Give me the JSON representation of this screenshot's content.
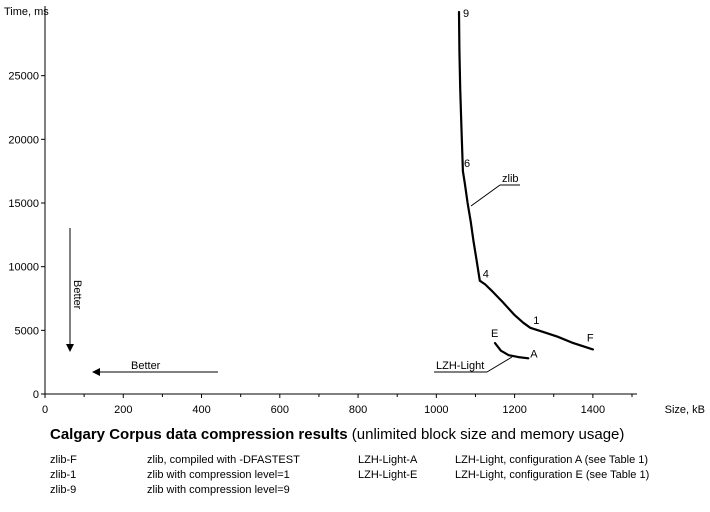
{
  "chart_data": {
    "type": "line",
    "xlabel": "Size, kB",
    "ylabel": "Time, ms",
    "xlim": [
      0,
      1500
    ],
    "ylim": [
      0,
      30000
    ],
    "x_ticks": [
      "0",
      "200",
      "400",
      "600",
      "800",
      "1000",
      "1200",
      "1400"
    ],
    "y_ticks": [
      "0",
      "5000",
      "10000",
      "15000",
      "20000",
      "25000"
    ],
    "grid": false,
    "series": [
      {
        "name": "zlib",
        "x": [
          1058,
          1059,
          1061,
          1064,
          1068,
          1073,
          1080,
          1088,
          1095,
          1103,
          1111,
          1125,
          1145,
          1170,
          1200,
          1222,
          1240,
          1270,
          1310,
          1350,
          1400
        ],
        "y": [
          30000,
          27000,
          24000,
          21000,
          17500,
          16500,
          15000,
          13500,
          12000,
          10500,
          8900,
          8600,
          8000,
          7200,
          6200,
          5600,
          5200,
          4900,
          4500,
          4000,
          3500
        ]
      },
      {
        "name": "LZH-Light",
        "x": [
          1150,
          1165,
          1185,
          1210,
          1235
        ],
        "y": [
          4000,
          3400,
          3050,
          2900,
          2800
        ]
      }
    ],
    "point_labels": [
      {
        "text": "9",
        "x": 1058,
        "y": 30000
      },
      {
        "text": "6",
        "x": 1068,
        "y": 17500
      },
      {
        "text": "4",
        "x": 1111,
        "y": 8900
      },
      {
        "text": "1",
        "x": 1240,
        "y": 5200
      },
      {
        "text": "F",
        "x": 1400,
        "y": 3500
      },
      {
        "text": "E",
        "x": 1150,
        "y": 4000
      },
      {
        "text": "A",
        "x": 1235,
        "y": 2800
      }
    ],
    "better_labels": {
      "vertical": "Better",
      "horizontal": "Better"
    }
  },
  "caption": {
    "bold": "Calgary Corpus data compression results",
    "rest": " (unlimited block size and memory usage)"
  },
  "legend": [
    {
      "key": "zlib-F",
      "desc": "zlib, compiled with -DFASTEST"
    },
    {
      "key": "zlib-1",
      "desc": "zlib with compression level=1"
    },
    {
      "key": "zlib-9",
      "desc": "zlib with compression level=9"
    },
    {
      "key": "LZH-Light-A",
      "desc": "LZH-Light, configuration A (see Table 1)"
    },
    {
      "key": "LZH-Light-E",
      "desc": "LZH-Light, configuration E (see Table 1)"
    }
  ]
}
